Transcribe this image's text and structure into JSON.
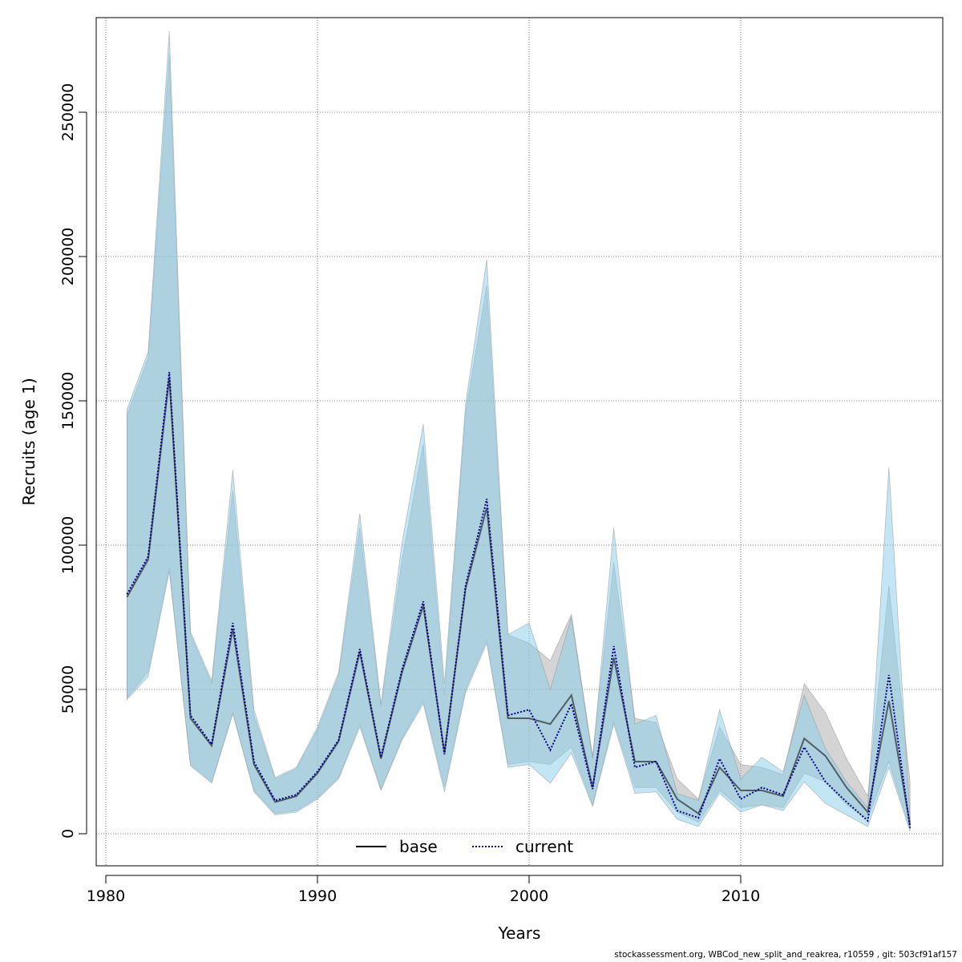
{
  "footer_text": "stockassessment.org, WBCod_new_split_and_reakrea, r10559 , git: 503cf91af157",
  "chart_data": {
    "type": "line",
    "title": "",
    "xlabel": "Years",
    "ylabel": "Recruits (age 1)",
    "xlim": [
      1980,
      2018
    ],
    "ylim": [
      0,
      280000
    ],
    "xticks": [
      1980,
      1990,
      2000,
      2010
    ],
    "yticks": [
      0,
      50000,
      100000,
      150000,
      200000,
      250000
    ],
    "grid": true,
    "legend_position": "bottom-center",
    "colors": {
      "base_band": "#a9a9a9",
      "current_band": "#87ceeb",
      "base_line": "#000000",
      "current_line": "#00008b"
    },
    "x": [
      1981,
      1982,
      1983,
      1984,
      1985,
      1986,
      1987,
      1988,
      1989,
      1990,
      1991,
      1992,
      1993,
      1994,
      1995,
      1996,
      1997,
      1998,
      1999,
      2000,
      2001,
      2002,
      2003,
      2004,
      2005,
      2006,
      2007,
      2008,
      2009,
      2010,
      2011,
      2012,
      2013,
      2014,
      2015,
      2016,
      2017,
      2018
    ],
    "series": [
      {
        "name": "base",
        "style": "solid",
        "values": [
          82000,
          95000,
          158000,
          40000,
          30500,
          71000,
          24000,
          11000,
          13000,
          21000,
          32000,
          63000,
          26000,
          56000,
          79000,
          28000,
          85000,
          113000,
          40000,
          40000,
          38000,
          48000,
          16000,
          61000,
          25000,
          25000,
          12000,
          7000,
          23000,
          15000,
          15000,
          13000,
          33000,
          27000,
          16000,
          7500,
          46000,
          3000
        ],
        "lower": [
          47000,
          56000,
          92000,
          24000,
          18000,
          42000,
          15000,
          7000,
          8000,
          12500,
          19500,
          38000,
          15500,
          33000,
          46000,
          16000,
          50000,
          67000,
          24000,
          25000,
          24000,
          30000,
          10000,
          39000,
          16000,
          16000,
          7500,
          4000,
          15000,
          9000,
          10000,
          9000,
          21000,
          18000,
          10000,
          5000,
          25000,
          1500
        ],
        "upper": [
          145000,
          165000,
          270000,
          69000,
          52000,
          119000,
          41000,
          19000,
          22500,
          36000,
          55000,
          106000,
          44000,
          95000,
          135000,
          48000,
          146000,
          190000,
          69000,
          66000,
          60000,
          76000,
          27000,
          94000,
          40000,
          38500,
          19000,
          12000,
          37000,
          24000,
          23000,
          20500,
          52000,
          42000,
          26000,
          13000,
          86000,
          18000
        ]
      },
      {
        "name": "current",
        "style": "dotted",
        "values": [
          83000,
          96000,
          160000,
          41000,
          31000,
          73000,
          25000,
          11500,
          13500,
          21500,
          32500,
          64000,
          26500,
          57000,
          80500,
          27500,
          86000,
          116000,
          41000,
          43000,
          29000,
          45000,
          15500,
          65000,
          23000,
          25000,
          8000,
          5500,
          26000,
          12000,
          16000,
          13500,
          30000,
          18000,
          11000,
          4500,
          55000,
          2000
        ],
        "lower": [
          46500,
          54500,
          91000,
          23500,
          17500,
          41500,
          14500,
          6500,
          7500,
          12000,
          19000,
          37000,
          15000,
          32500,
          45000,
          14500,
          49000,
          66000,
          23000,
          24000,
          17500,
          28000,
          9500,
          38000,
          14000,
          14500,
          5000,
          2500,
          14000,
          7500,
          10000,
          8000,
          18000,
          10500,
          6500,
          2500,
          23000,
          800
        ],
        "upper": [
          147000,
          167000,
          278000,
          70000,
          53000,
          126000,
          43000,
          19500,
          23000,
          37000,
          56000,
          111000,
          45000,
          101000,
          142000,
          52000,
          149000,
          199000,
          69000,
          73000,
          50000,
          75000,
          26000,
          106000,
          38000,
          41000,
          14000,
          11500,
          43000,
          19000,
          26500,
          21500,
          48000,
          29500,
          18000,
          9000,
          127000,
          5500
        ]
      }
    ]
  }
}
